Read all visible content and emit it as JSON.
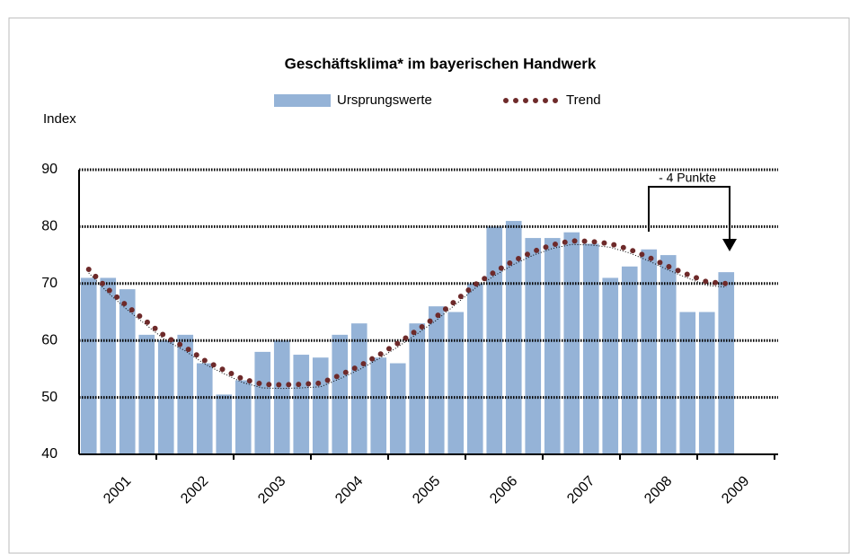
{
  "chart_data": {
    "type": "bar_line",
    "title": "Geschäftsklima* im bayerischen Handwerk",
    "y_label": "Index",
    "annotation": "- 4 Punkte",
    "categories": [
      null,
      "2001",
      null,
      null,
      null,
      "2002",
      null,
      null,
      null,
      "2003",
      null,
      null,
      null,
      "2004",
      null,
      null,
      null,
      "2005",
      null,
      null,
      null,
      "2006",
      null,
      null,
      null,
      "2007",
      null,
      null,
      null,
      "2008",
      null,
      null,
      null,
      "2009"
    ],
    "series": [
      {
        "name": "Ursprungswerte",
        "type": "bar",
        "color": "#95b3d7",
        "values": [
          71,
          71,
          69,
          61,
          60,
          61,
          56,
          50.5,
          53,
          58,
          60,
          57.5,
          57,
          61,
          63,
          57,
          56,
          63,
          66,
          65,
          70,
          80,
          81,
          78,
          78,
          79,
          77,
          71,
          73,
          76,
          75,
          65,
          65,
          72
        ]
      },
      {
        "name": "Trend",
        "type": "line",
        "color": "#6e2a2a",
        "values": [
          72.5,
          69,
          66,
          63.3,
          60.6,
          58.8,
          56.5,
          54.8,
          53.2,
          52.3,
          52.2,
          52.3,
          52.5,
          53.9,
          55.5,
          57.4,
          59.5,
          61.8,
          64.2,
          67,
          69.8,
          72,
          74,
          75.6,
          76.8,
          77.5,
          77.4,
          77,
          76,
          74.6,
          73,
          71.6,
          70.3,
          70
        ]
      }
    ],
    "ylim": [
      40,
      90
    ],
    "yticks": [
      40,
      50,
      60,
      70,
      80,
      90
    ],
    "grid": true
  }
}
